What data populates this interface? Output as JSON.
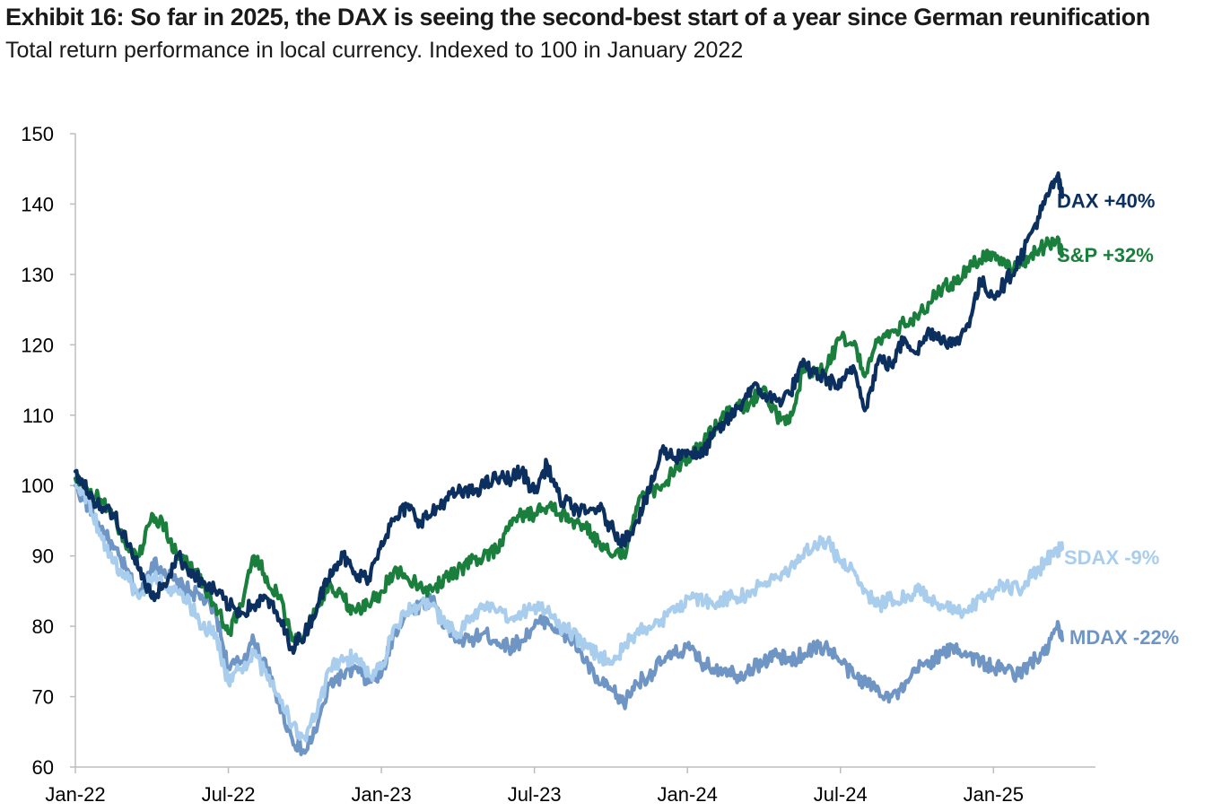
{
  "title": "Exhibit 16: So far in 2025, the DAX is seeing the second-best start of a year since German reunification",
  "subtitle": "Total return performance in local currency. Indexed to 100 in January 2022",
  "chart_data": {
    "type": "line",
    "x_ticks": [
      "Jan-22",
      "Jul-22",
      "Jan-23",
      "Jul-23",
      "Jan-24",
      "Jul-24",
      "Jan-25"
    ],
    "x_tick_index": [
      0,
      6,
      12,
      18,
      24,
      30,
      36
    ],
    "y_ticks": [
      "150",
      "140",
      "130",
      "120",
      "110",
      "100",
      "90",
      "80",
      "70",
      "60"
    ],
    "ylim": [
      60,
      150
    ],
    "x_range": [
      0,
      40
    ],
    "x_unit": "months since Jan-22",
    "grid": false,
    "series": [
      {
        "name": "DAX",
        "label": "DAX  +40%",
        "color": "#0b2f5e",
        "points": [
          [
            0,
            102
          ],
          [
            0.5,
            99
          ],
          [
            1,
            97
          ],
          [
            1.5,
            96
          ],
          [
            2,
            92
          ],
          [
            2.5,
            88
          ],
          [
            3,
            84
          ],
          [
            3.5,
            86
          ],
          [
            4,
            90
          ],
          [
            4.5,
            88
          ],
          [
            5,
            86
          ],
          [
            5.5,
            85
          ],
          [
            6,
            83
          ],
          [
            6.5,
            82
          ],
          [
            7,
            83
          ],
          [
            7.5,
            84
          ],
          [
            8,
            81
          ],
          [
            8.5,
            77
          ],
          [
            9,
            79
          ],
          [
            9.5,
            83
          ],
          [
            10,
            88
          ],
          [
            10.5,
            90
          ],
          [
            11,
            87
          ],
          [
            11.5,
            87
          ],
          [
            12,
            92
          ],
          [
            12.5,
            95
          ],
          [
            13,
            97
          ],
          [
            13.5,
            95
          ],
          [
            14,
            96
          ],
          [
            14.5,
            98
          ],
          [
            15,
            99
          ],
          [
            15.5,
            99
          ],
          [
            16,
            100
          ],
          [
            16.5,
            101
          ],
          [
            17,
            101
          ],
          [
            17.5,
            102
          ],
          [
            18,
            99
          ],
          [
            18.5,
            103
          ],
          [
            19,
            98
          ],
          [
            19.5,
            97
          ],
          [
            20,
            96
          ],
          [
            20.5,
            97
          ],
          [
            21,
            94
          ],
          [
            21.5,
            92
          ],
          [
            22,
            95
          ],
          [
            22.5,
            99
          ],
          [
            23,
            105
          ],
          [
            23.5,
            104
          ],
          [
            24,
            105
          ],
          [
            24.5,
            104
          ],
          [
            25,
            107
          ],
          [
            25.5,
            109
          ],
          [
            26,
            111
          ],
          [
            26.5,
            114
          ],
          [
            27,
            113
          ],
          [
            27.5,
            112
          ],
          [
            28,
            113
          ],
          [
            28.5,
            117
          ],
          [
            29,
            116
          ],
          [
            29.5,
            115
          ],
          [
            30,
            114
          ],
          [
            30.5,
            117
          ],
          [
            31,
            111
          ],
          [
            31.5,
            118
          ],
          [
            32,
            117
          ],
          [
            32.5,
            121
          ],
          [
            33,
            119
          ],
          [
            33.5,
            122
          ],
          [
            34,
            121
          ],
          [
            34.5,
            120
          ],
          [
            35,
            123
          ],
          [
            35.5,
            129
          ],
          [
            36,
            127
          ],
          [
            36.5,
            129
          ],
          [
            37,
            132
          ],
          [
            37.5,
            136
          ],
          [
            38,
            140
          ],
          [
            38.5,
            144
          ],
          [
            38.7,
            141
          ]
        ]
      },
      {
        "name": "S&P",
        "label": "S&P  +32%",
        "color": "#1a7f3c",
        "points": [
          [
            0,
            101
          ],
          [
            0.5,
            99
          ],
          [
            1,
            98
          ],
          [
            1.5,
            96
          ],
          [
            2,
            91
          ],
          [
            2.5,
            90
          ],
          [
            3,
            96
          ],
          [
            3.5,
            94
          ],
          [
            4,
            90
          ],
          [
            4.5,
            89
          ],
          [
            5,
            86
          ],
          [
            5.5,
            83
          ],
          [
            6,
            79
          ],
          [
            6.5,
            83
          ],
          [
            7,
            90
          ],
          [
            7.5,
            87
          ],
          [
            8,
            84
          ],
          [
            8.5,
            78
          ],
          [
            9,
            79
          ],
          [
            9.5,
            83
          ],
          [
            10,
            86
          ],
          [
            10.5,
            84
          ],
          [
            11,
            82
          ],
          [
            11.5,
            83
          ],
          [
            12,
            85
          ],
          [
            12.5,
            88
          ],
          [
            13,
            87
          ],
          [
            13.5,
            86
          ],
          [
            14,
            85
          ],
          [
            14.5,
            87
          ],
          [
            15,
            88
          ],
          [
            15.5,
            89
          ],
          [
            16,
            90
          ],
          [
            16.5,
            91
          ],
          [
            17,
            94
          ],
          [
            17.5,
            96
          ],
          [
            18,
            96
          ],
          [
            18.5,
            97
          ],
          [
            19,
            96
          ],
          [
            19.5,
            95
          ],
          [
            20,
            94
          ],
          [
            20.5,
            92
          ],
          [
            21,
            90
          ],
          [
            21.5,
            90
          ],
          [
            22,
            97
          ],
          [
            22.5,
            99
          ],
          [
            23,
            100
          ],
          [
            23.5,
            102
          ],
          [
            24,
            104
          ],
          [
            24.5,
            106
          ],
          [
            25,
            108
          ],
          [
            25.5,
            110
          ],
          [
            26,
            111
          ],
          [
            26.5,
            112
          ],
          [
            27,
            114
          ],
          [
            27.5,
            110
          ],
          [
            28,
            109
          ],
          [
            28.5,
            116
          ],
          [
            29,
            116
          ],
          [
            29.5,
            117
          ],
          [
            30,
            121
          ],
          [
            30.5,
            120
          ],
          [
            31,
            116
          ],
          [
            31.5,
            121
          ],
          [
            32,
            122
          ],
          [
            32.5,
            123
          ],
          [
            33,
            124
          ],
          [
            33.5,
            126
          ],
          [
            34,
            128
          ],
          [
            34.5,
            129
          ],
          [
            35,
            131
          ],
          [
            35.5,
            132
          ],
          [
            36,
            133
          ],
          [
            36.5,
            131
          ],
          [
            37,
            131
          ],
          [
            37.5,
            133
          ],
          [
            38,
            134
          ],
          [
            38.5,
            135
          ],
          [
            38.7,
            133
          ]
        ]
      },
      {
        "name": "SDAX",
        "label": "SDAX  -9%",
        "color": "#a9cdec",
        "points": [
          [
            0,
            101
          ],
          [
            0.5,
            98
          ],
          [
            1,
            93
          ],
          [
            1.5,
            89
          ],
          [
            2,
            87
          ],
          [
            2.5,
            84
          ],
          [
            3,
            87
          ],
          [
            3.5,
            86
          ],
          [
            4,
            85
          ],
          [
            4.5,
            83
          ],
          [
            5,
            80
          ],
          [
            5.5,
            79
          ],
          [
            6,
            72
          ],
          [
            6.5,
            74
          ],
          [
            7,
            76
          ],
          [
            7.5,
            73
          ],
          [
            8,
            70
          ],
          [
            8.5,
            66
          ],
          [
            9,
            64
          ],
          [
            9.5,
            68
          ],
          [
            10,
            74
          ],
          [
            10.5,
            75
          ],
          [
            11,
            76
          ],
          [
            11.5,
            73
          ],
          [
            12,
            74
          ],
          [
            12.5,
            80
          ],
          [
            13,
            82
          ],
          [
            13.5,
            83
          ],
          [
            14,
            83
          ],
          [
            14.5,
            80
          ],
          [
            15,
            79
          ],
          [
            15.5,
            81
          ],
          [
            16,
            83
          ],
          [
            16.5,
            82
          ],
          [
            17,
            81
          ],
          [
            17.5,
            82
          ],
          [
            18,
            83
          ],
          [
            18.5,
            82
          ],
          [
            19,
            80
          ],
          [
            19.5,
            79
          ],
          [
            20,
            77
          ],
          [
            20.5,
            76
          ],
          [
            21,
            75
          ],
          [
            21.5,
            77
          ],
          [
            22,
            79
          ],
          [
            22.5,
            80
          ],
          [
            23,
            81
          ],
          [
            23.5,
            82
          ],
          [
            24,
            84
          ],
          [
            24.5,
            84
          ],
          [
            25,
            83
          ],
          [
            25.5,
            84
          ],
          [
            26,
            84
          ],
          [
            26.5,
            85
          ],
          [
            27,
            86
          ],
          [
            27.5,
            87
          ],
          [
            28,
            88
          ],
          [
            28.5,
            90
          ],
          [
            29,
            92
          ],
          [
            29.5,
            92
          ],
          [
            30,
            89
          ],
          [
            30.5,
            88
          ],
          [
            31,
            85
          ],
          [
            31.5,
            83
          ],
          [
            32,
            84
          ],
          [
            32.5,
            84
          ],
          [
            33,
            85
          ],
          [
            33.5,
            84
          ],
          [
            34,
            83
          ],
          [
            34.5,
            82
          ],
          [
            35,
            82
          ],
          [
            35.5,
            84
          ],
          [
            36,
            85
          ],
          [
            36.5,
            86
          ],
          [
            37,
            85
          ],
          [
            37.5,
            87
          ],
          [
            38,
            89
          ],
          [
            38.5,
            91
          ],
          [
            38.7,
            91
          ]
        ]
      },
      {
        "name": "MDAX",
        "label": "MDAX  -22%",
        "color": "#6f95c4",
        "points": [
          [
            0,
            100
          ],
          [
            0.5,
            97
          ],
          [
            1,
            94
          ],
          [
            1.5,
            91
          ],
          [
            2,
            88
          ],
          [
            2.5,
            84
          ],
          [
            3,
            89
          ],
          [
            3.5,
            88
          ],
          [
            4,
            86
          ],
          [
            4.5,
            85
          ],
          [
            5,
            84
          ],
          [
            5.5,
            82
          ],
          [
            6,
            74
          ],
          [
            6.5,
            75
          ],
          [
            7,
            78
          ],
          [
            7.5,
            74
          ],
          [
            8,
            69
          ],
          [
            8.5,
            64
          ],
          [
            9,
            62
          ],
          [
            9.5,
            66
          ],
          [
            10,
            72
          ],
          [
            10.5,
            73
          ],
          [
            11,
            74
          ],
          [
            11.5,
            72
          ],
          [
            12,
            73
          ],
          [
            12.5,
            79
          ],
          [
            13,
            82
          ],
          [
            13.5,
            83
          ],
          [
            14,
            84
          ],
          [
            14.5,
            80
          ],
          [
            15,
            78
          ],
          [
            15.5,
            78
          ],
          [
            16,
            79
          ],
          [
            16.5,
            78
          ],
          [
            17,
            77
          ],
          [
            17.5,
            78
          ],
          [
            18,
            80
          ],
          [
            18.5,
            81
          ],
          [
            19,
            79
          ],
          [
            19.5,
            78
          ],
          [
            20,
            75
          ],
          [
            20.5,
            72
          ],
          [
            21,
            71
          ],
          [
            21.5,
            69
          ],
          [
            22,
            72
          ],
          [
            22.5,
            73
          ],
          [
            23,
            75
          ],
          [
            23.5,
            76
          ],
          [
            24,
            77
          ],
          [
            24.5,
            75
          ],
          [
            25,
            74
          ],
          [
            25.5,
            74
          ],
          [
            26,
            73
          ],
          [
            26.5,
            74
          ],
          [
            27,
            75
          ],
          [
            27.5,
            76
          ],
          [
            28,
            75
          ],
          [
            28.5,
            76
          ],
          [
            29,
            77
          ],
          [
            29.5,
            77
          ],
          [
            30,
            75
          ],
          [
            30.5,
            73
          ],
          [
            31,
            72
          ],
          [
            31.5,
            71
          ],
          [
            32,
            70
          ],
          [
            32.5,
            71
          ],
          [
            33,
            74
          ],
          [
            33.5,
            75
          ],
          [
            34,
            76
          ],
          [
            34.5,
            77
          ],
          [
            35,
            76
          ],
          [
            35.5,
            75
          ],
          [
            36,
            74
          ],
          [
            36.5,
            74
          ],
          [
            37,
            73
          ],
          [
            37.5,
            75
          ],
          [
            38,
            76
          ],
          [
            38.5,
            80
          ],
          [
            38.7,
            78
          ]
        ]
      }
    ]
  }
}
